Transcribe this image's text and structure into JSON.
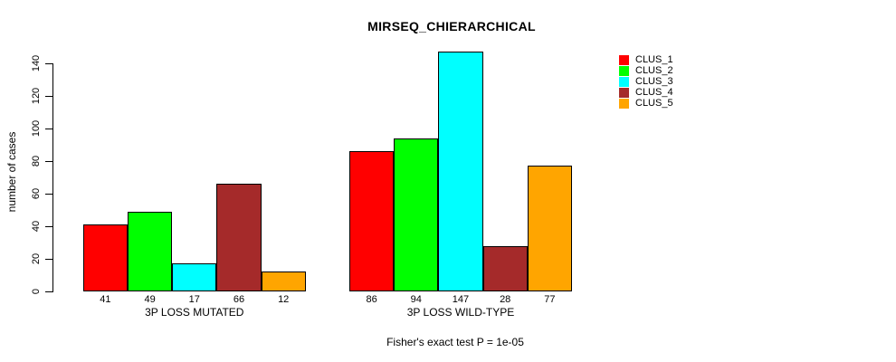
{
  "chart_data": {
    "type": "bar",
    "title": "MIRSEQ_CHIERARCHICAL",
    "ylabel": "number of cases",
    "xlabel": "",
    "annotation": "Fisher's exact test P = 1e-05",
    "series_labels": [
      "CLUS_1",
      "CLUS_2",
      "CLUS_3",
      "CLUS_4",
      "CLUS_5"
    ],
    "colors": [
      "#FF0000",
      "#00FF00",
      "#00FFFF",
      "#A52A2A",
      "#FFA500"
    ],
    "groups": [
      {
        "label": "3P LOSS MUTATED",
        "values": [
          41,
          49,
          17,
          66,
          12
        ]
      },
      {
        "label": "3P LOSS WILD-TYPE",
        "values": [
          86,
          94,
          147,
          28,
          77
        ]
      }
    ],
    "yticks": [
      0,
      20,
      40,
      60,
      80,
      100,
      120,
      140
    ],
    "ylim": [
      0,
      140
    ],
    "grid": false,
    "legend_position": "top-right",
    "bar_border_color": "#000000"
  }
}
